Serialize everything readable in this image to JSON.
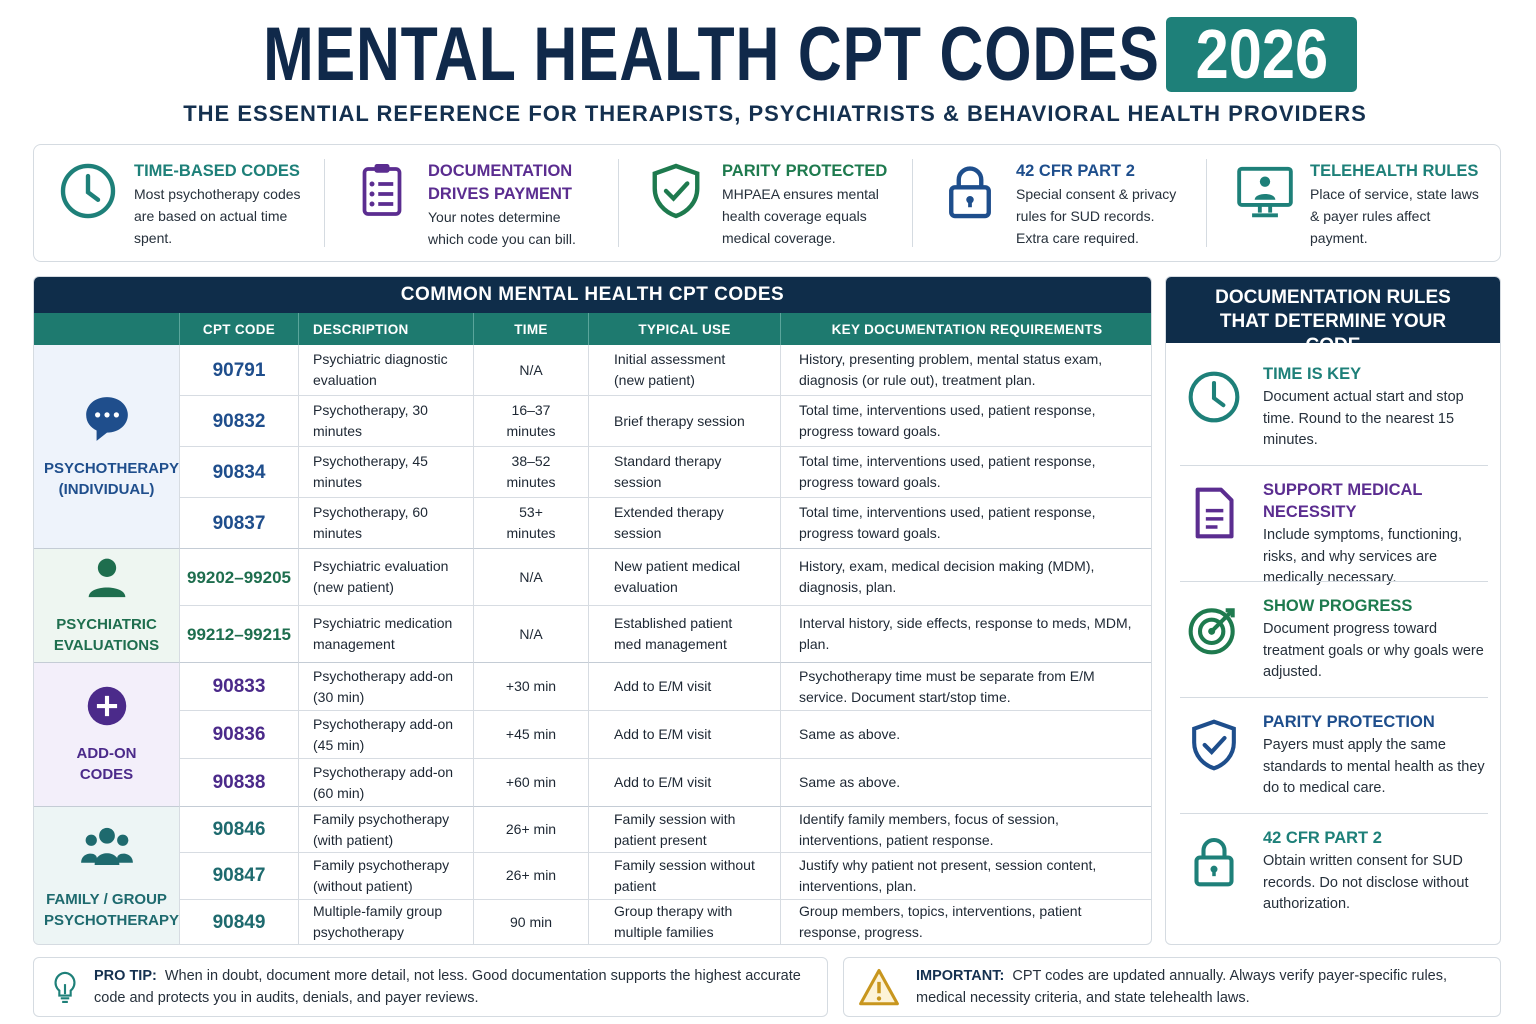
{
  "header": {
    "title": "MENTAL HEALTH CPT CODES",
    "year": "2026",
    "subtitle": "THE ESSENTIAL REFERENCE FOR THERAPISTS, PSYCHIATRISTS & BEHAVIORAL HEALTH PROVIDERS"
  },
  "features": [
    {
      "title": "TIME-BASED CODES",
      "text": "Most psychotherapy codes are based on actual time spent."
    },
    {
      "title": "DOCUMENTATION DRIVES PAYMENT",
      "text": "Your notes determine which code you can bill."
    },
    {
      "title": "PARITY PROTECTED",
      "text": "MHPAEA ensures mental health coverage equals medical coverage."
    },
    {
      "title": "42 CFR PART 2",
      "text": "Special consent & privacy rules for SUD records. Extra care required."
    },
    {
      "title": "TELEHEALTH RULES",
      "text": "Place of service, state laws & payer rules affect payment."
    }
  ],
  "table": {
    "title": "COMMON MENTAL HEALTH CPT CODES",
    "columns": [
      "CPT CODE",
      "DESCRIPTION",
      "TIME",
      "TYPICAL USE",
      "KEY DOCUMENTATION REQUIREMENTS"
    ],
    "groups": [
      {
        "label": "PSYCHOTHERAPY (INDIVIDUAL)",
        "rows": [
          [
            "90791",
            "Psychiatric diagnostic evaluation",
            "N/A",
            "Initial assessment (new patient)",
            "History, presenting problem, mental status exam, diagnosis (or rule out), treatment plan."
          ],
          [
            "90832",
            "Psychotherapy, 30 minutes",
            "16–37 minutes",
            "Brief therapy session",
            "Total time, interventions used, patient response, progress toward goals."
          ],
          [
            "90834",
            "Psychotherapy, 45 minutes",
            "38–52 minutes",
            "Standard therapy session",
            "Total time, interventions used, patient response, progress toward goals."
          ],
          [
            "90837",
            "Psychotherapy, 60 minutes",
            "53+ minutes",
            "Extended therapy session",
            "Total time, interventions used, patient response, progress toward goals."
          ]
        ]
      },
      {
        "label": "PSYCHIATRIC EVALUATIONS",
        "rows": [
          [
            "99202–99205",
            "Psychiatric evaluation (new patient)",
            "N/A",
            "New patient medical evaluation",
            "History, exam, medical decision making (MDM), diagnosis, plan."
          ],
          [
            "99212–99215",
            "Psychiatric medication management",
            "N/A",
            "Established patient med management",
            "Interval history, side effects, response to meds, MDM, plan."
          ]
        ]
      },
      {
        "label": "ADD-ON CODES",
        "rows": [
          [
            "90833",
            "Psychotherapy add-on (30 min)",
            "+30 min",
            "Add to E/M visit",
            "Psychotherapy time must be separate from E/M service. Document start/stop time."
          ],
          [
            "90836",
            "Psychotherapy add-on (45 min)",
            "+45 min",
            "Add to E/M visit",
            "Same as above."
          ],
          [
            "90838",
            "Psychotherapy add-on (60 min)",
            "+60 min",
            "Add to E/M visit",
            "Same as above."
          ]
        ]
      },
      {
        "label": "FAMILY / GROUP PSYCHOTHERAPY",
        "rows": [
          [
            "90846",
            "Family psychotherapy (with patient)",
            "26+ min",
            "Family session with patient present",
            "Identify family members, focus of session, interventions, patient response."
          ],
          [
            "90847",
            "Family psychotherapy (without patient)",
            "26+ min",
            "Family session without patient",
            "Justify why patient not present, session content, interventions, plan."
          ],
          [
            "90849",
            "Multiple-family group psychotherapy",
            "90 min",
            "Group therapy with multiple families",
            "Group members, topics, interventions, patient response, progress."
          ]
        ]
      }
    ]
  },
  "rules": {
    "title": "DOCUMENTATION RULES THAT DETERMINE YOUR CODE",
    "items": [
      {
        "title": "TIME IS KEY",
        "text": "Document actual start and stop time. Round to the nearest 15 minutes."
      },
      {
        "title": "SUPPORT MEDICAL NECESSITY",
        "text": "Include symptoms, functioning, risks, and why services are medically necessary."
      },
      {
        "title": "SHOW PROGRESS",
        "text": "Document progress toward treatment goals or why goals were adjusted."
      },
      {
        "title": "PARITY PROTECTION",
        "text": "Payers must apply the same standards to mental health as they do to medical care."
      },
      {
        "title": "42 CFR PART 2",
        "text": "Obtain written consent for SUD records. Do not disclose without authorization."
      }
    ]
  },
  "tips": {
    "pro_tip": {
      "label": "PRO TIP:",
      "text": "When in doubt, document more detail, not less. Good documentation supports the highest accurate code and protects you in audits, denials, and payer reviews."
    },
    "important": {
      "label": "IMPORTANT:",
      "text": "CPT codes are updated annually. Always verify payer-specific rules, medical necessity criteria, and state telehealth laws."
    }
  }
}
